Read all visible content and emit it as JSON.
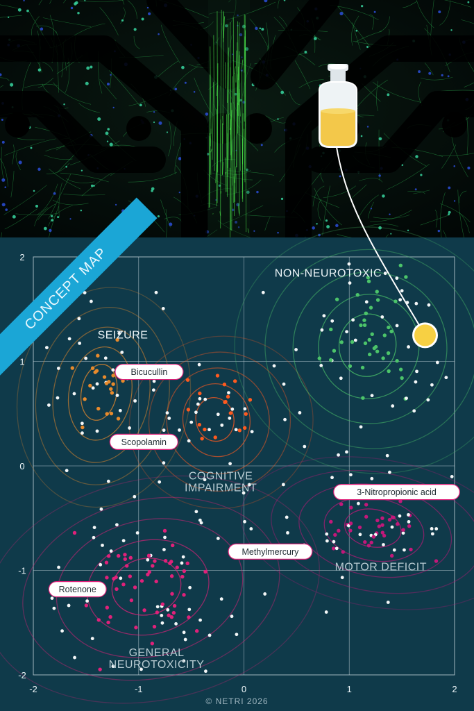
{
  "banner": "CONCEPT MAP",
  "credit": "© NETRI 2026",
  "icons": {
    "vial": "vial-icon",
    "compound-marker": "yellow-circle"
  },
  "colors": {
    "background": "#0f3a4a",
    "seizure": "#e88a2c",
    "cognitive": "#ff5a1f",
    "non_neurotoxic": "#4cc46a",
    "general": "#e0217a",
    "motor": "#c2187a",
    "compound": "#f7d043",
    "banner": "#1ba6d6"
  },
  "chart_data": {
    "type": "scatter",
    "xlim": [
      -2,
      2
    ],
    "ylim": [
      -2,
      2
    ],
    "x_ticks": [
      "-2",
      "-1",
      "0",
      "1",
      "2"
    ],
    "y_ticks": [
      "2",
      "1",
      "0",
      "-1",
      "-2"
    ],
    "grid": true,
    "clusters": [
      {
        "label": "SEIZURE",
        "center": [
          -1.35,
          0.7
        ],
        "spread": [
          0.28,
          0.45
        ],
        "color": "#e88a2c",
        "n": 60
      },
      {
        "label": "COGNITIVE\nIMPAIRMENT",
        "center": [
          -0.25,
          0.45
        ],
        "spread": [
          0.3,
          0.35
        ],
        "color": "#ff5a1f",
        "n": 45
      },
      {
        "label": "NON-NEUROTOXIC",
        "center": [
          1.2,
          1.15
        ],
        "spread": [
          0.45,
          0.5
        ],
        "color": "#4cc46a",
        "n": 95
      },
      {
        "label": "GENERAL\nNEUROTOXICITY",
        "center": [
          -0.9,
          -1.15
        ],
        "spread": [
          0.55,
          0.45
        ],
        "color": "#e0217a",
        "n": 120
      },
      {
        "label": "MOTOR DEFICIT",
        "center": [
          1.25,
          -0.6
        ],
        "spread": [
          0.45,
          0.3
        ],
        "color": "#c2187a",
        "n": 70
      }
    ],
    "compounds": [
      {
        "label": "Bicucullin",
        "x": -0.9,
        "y": 0.9
      },
      {
        "label": "Scopolamin",
        "x": -0.95,
        "y": 0.23
      },
      {
        "label": "3-Nitropropionic acid",
        "x": 1.45,
        "y": -0.25
      },
      {
        "label": "Methylmercury",
        "x": 0.25,
        "y": -0.82
      },
      {
        "label": "Rotenone",
        "x": -1.58,
        "y": -1.18
      }
    ],
    "highlight": {
      "x": 1.72,
      "y": 1.25
    }
  }
}
